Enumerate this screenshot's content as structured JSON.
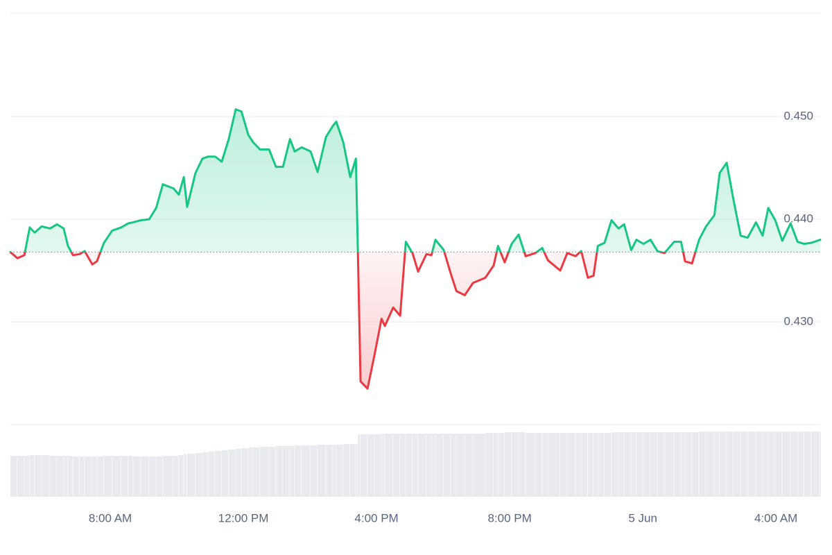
{
  "chart_data": {
    "type": "line",
    "x": [
      5.0,
      5.21,
      5.42,
      5.58,
      5.73,
      5.94,
      6.19,
      6.4,
      6.6,
      6.73,
      6.88,
      7.08,
      7.23,
      7.46,
      7.6,
      7.81,
      8.06,
      8.33,
      8.54,
      8.69,
      8.92,
      9.17,
      9.38,
      9.58,
      9.9,
      10.06,
      10.21,
      10.31,
      10.56,
      10.77,
      10.94,
      11.15,
      11.35,
      11.56,
      11.77,
      11.94,
      12.15,
      12.29,
      12.5,
      12.77,
      12.98,
      13.19,
      13.4,
      13.54,
      13.75,
      14.02,
      14.23,
      14.48,
      14.69,
      14.79,
      15.0,
      15.21,
      15.38,
      15.44,
      15.52,
      15.73,
      15.94,
      16.15,
      16.25,
      16.5,
      16.71,
      16.88,
      17.08,
      17.25,
      17.5,
      17.65,
      17.77,
      18.02,
      18.23,
      18.4,
      18.65,
      18.9,
      19.27,
      19.52,
      19.65,
      19.85,
      20.06,
      20.27,
      20.48,
      20.77,
      20.98,
      21.15,
      21.52,
      21.73,
      21.98,
      22.15,
      22.35,
      22.52,
      22.65,
      22.85,
      23.06,
      23.27,
      23.44,
      23.65,
      23.81,
      24.02,
      24.23,
      24.44,
      24.65,
      24.94,
      25.15,
      25.27,
      25.48,
      25.69,
      25.9,
      26.15,
      26.31,
      26.52,
      26.73,
      26.94,
      27.15,
      27.4,
      27.6,
      27.77,
      27.98,
      28.19,
      28.44,
      28.65,
      28.85,
      29.06,
      29.33
    ],
    "values": [
      0.4368,
      0.4362,
      0.4365,
      0.4392,
      0.4387,
      0.4393,
      0.4391,
      0.4395,
      0.4391,
      0.4374,
      0.4365,
      0.4366,
      0.4369,
      0.4356,
      0.4359,
      0.4377,
      0.4389,
      0.4392,
      0.4396,
      0.4397,
      0.4399,
      0.44,
      0.4411,
      0.4434,
      0.443,
      0.4424,
      0.4441,
      0.4412,
      0.4445,
      0.4459,
      0.4461,
      0.4461,
      0.4456,
      0.4478,
      0.4507,
      0.4505,
      0.4482,
      0.4475,
      0.4468,
      0.4468,
      0.4451,
      0.4451,
      0.4478,
      0.4466,
      0.447,
      0.4466,
      0.4446,
      0.448,
      0.4491,
      0.4495,
      0.4475,
      0.4441,
      0.4459,
      0.4368,
      0.4242,
      0.4235,
      0.4268,
      0.4303,
      0.4296,
      0.4314,
      0.4306,
      0.4378,
      0.4367,
      0.4349,
      0.4366,
      0.4365,
      0.438,
      0.437,
      0.4347,
      0.433,
      0.4326,
      0.4338,
      0.4343,
      0.4355,
      0.4374,
      0.4358,
      0.4376,
      0.4385,
      0.4364,
      0.4367,
      0.4372,
      0.436,
      0.435,
      0.4367,
      0.4364,
      0.4369,
      0.4343,
      0.4345,
      0.4374,
      0.4377,
      0.4399,
      0.4391,
      0.4395,
      0.437,
      0.438,
      0.4376,
      0.438,
      0.4369,
      0.4367,
      0.4378,
      0.4378,
      0.4359,
      0.4357,
      0.438,
      0.4393,
      0.4404,
      0.4445,
      0.4455,
      0.4418,
      0.4384,
      0.4382,
      0.4397,
      0.4384,
      0.4411,
      0.4399,
      0.4379,
      0.4396,
      0.4378,
      0.4376,
      0.4377,
      0.438
    ],
    "baseline": 0.4368,
    "up_color": "#16c784",
    "down_color": "#ea3943",
    "xlim": [
      5.0,
      29.33
    ],
    "xticks": [
      {
        "value": 8,
        "label": "8:00 AM"
      },
      {
        "value": 12,
        "label": "12:00 PM"
      },
      {
        "value": 16,
        "label": "4:00 PM"
      },
      {
        "value": 20,
        "label": "8:00 PM"
      },
      {
        "value": 24,
        "label": "5 Jun"
      },
      {
        "value": 28,
        "label": "4:00 AM"
      }
    ],
    "ylim": [
      0.42,
      0.46
    ],
    "yticks": [
      {
        "value": 0.43,
        "label": "0.430"
      },
      {
        "value": 0.44,
        "label": "0.440"
      },
      {
        "value": 0.45,
        "label": "0.450"
      }
    ],
    "grid": true,
    "volume": {
      "values": [
        59,
        59,
        59,
        60,
        60,
        60,
        59,
        59,
        59,
        59,
        58,
        58,
        58,
        58,
        58,
        59,
        59,
        59,
        59,
        58,
        58,
        58,
        58,
        59,
        59,
        60,
        61,
        62,
        63,
        64,
        65,
        66,
        67,
        68,
        69,
        70,
        71,
        71,
        72,
        72,
        73,
        73,
        73,
        74,
        74,
        74,
        75,
        75,
        75,
        75,
        76,
        76,
        76,
        90,
        90,
        90,
        90,
        91,
        91,
        91,
        91,
        91,
        91,
        91,
        91,
        91,
        91,
        91,
        91,
        91,
        91,
        91,
        92,
        92,
        92,
        93,
        93,
        93,
        92,
        92,
        92,
        92,
        92,
        92,
        92,
        92,
        92,
        92,
        92,
        92,
        93,
        93,
        93,
        93,
        93,
        93,
        93,
        93,
        93,
        93,
        93,
        93,
        93,
        94,
        94,
        94,
        94,
        94,
        94,
        94,
        94,
        94,
        94,
        94,
        94,
        94,
        94,
        94,
        94,
        94,
        94
      ],
      "ylim": [
        0,
        100
      ],
      "color": "#e8eaee"
    }
  }
}
